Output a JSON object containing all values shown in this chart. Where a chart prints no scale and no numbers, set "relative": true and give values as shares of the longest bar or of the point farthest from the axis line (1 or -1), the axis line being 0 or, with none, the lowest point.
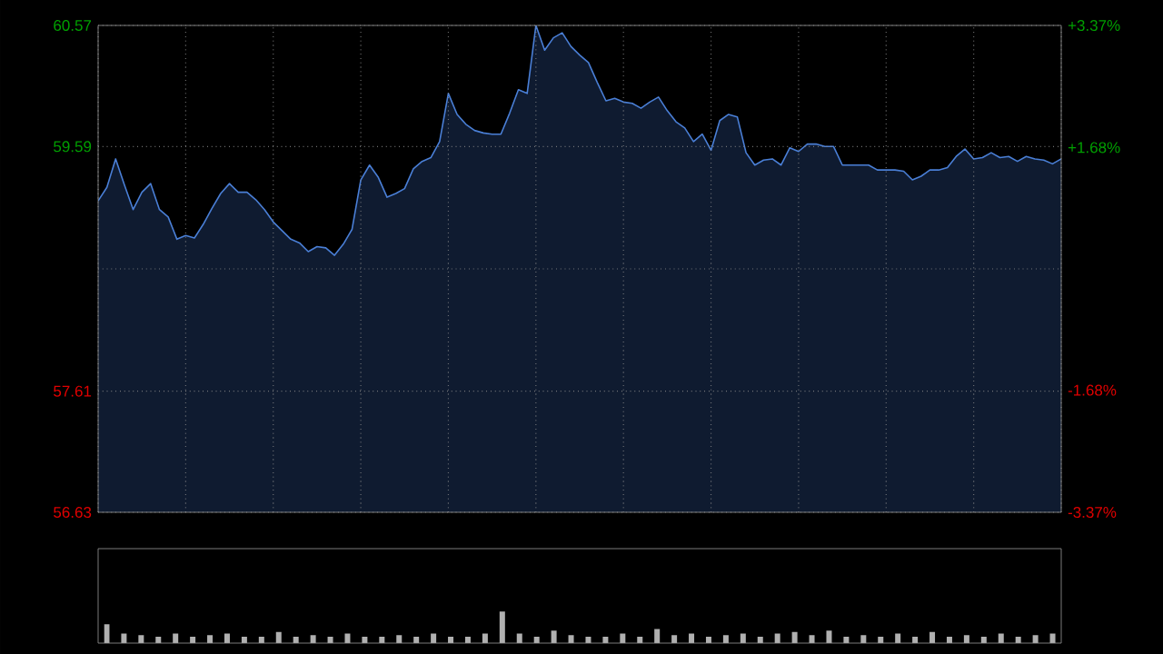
{
  "chart_data": [
    {
      "type": "area",
      "categories": [
        null,
        null,
        null,
        null,
        null,
        null,
        null,
        null,
        null,
        null,
        null,
        null,
        null,
        null,
        null,
        null,
        null,
        null,
        null,
        null,
        null,
        null,
        null,
        null,
        null,
        null,
        null,
        null,
        null,
        null,
        null,
        null,
        null,
        null,
        null,
        null,
        null,
        null,
        null,
        null,
        null,
        null,
        null,
        null,
        null,
        null,
        null,
        null,
        null,
        null,
        null,
        null,
        null,
        null,
        null,
        null,
        null,
        null,
        null,
        null,
        null,
        null,
        null,
        null,
        null,
        null,
        null,
        null,
        null,
        null,
        null,
        null,
        null,
        null,
        null,
        null,
        null,
        null,
        null,
        null,
        null,
        null,
        null,
        null,
        null,
        null,
        null,
        null,
        null,
        null,
        null,
        null,
        null,
        null,
        null,
        null,
        null,
        null,
        null,
        null,
        null,
        null,
        null,
        null,
        null,
        null,
        null,
        null,
        null,
        null,
        null
      ],
      "series": [
        {
          "color": "#4a7fd6",
          "values": [
            59.15,
            59.26,
            59.49,
            59.28,
            59.08,
            59.22,
            59.29,
            59.08,
            59.02,
            58.84,
            58.87,
            58.85,
            58.96,
            59.09,
            59.21,
            59.29,
            59.22,
            59.22,
            59.16,
            59.08,
            58.98,
            58.91,
            58.84,
            58.81,
            58.74,
            58.78,
            58.77,
            58.71,
            58.8,
            58.92,
            59.32,
            59.44,
            59.34,
            59.18,
            59.21,
            59.25,
            59.41,
            59.47,
            59.5,
            59.63,
            60.02,
            59.85,
            59.77,
            59.72,
            59.7,
            59.69,
            59.69,
            59.86,
            60.05,
            60.02,
            60.57,
            60.37,
            60.47,
            60.51,
            60.4,
            60.33,
            60.27,
            60.11,
            59.96,
            59.98,
            59.95,
            59.94,
            59.9,
            59.95,
            59.99,
            59.88,
            59.79,
            59.74,
            59.63,
            59.69,
            59.56,
            59.8,
            59.85,
            59.83,
            59.54,
            59.44,
            59.48,
            59.49,
            59.44,
            59.58,
            59.55,
            59.61,
            59.61,
            59.59,
            59.59,
            59.44,
            59.44,
            59.44,
            59.44,
            59.4,
            59.4,
            59.4,
            59.39,
            59.32,
            59.35,
            59.4,
            59.4,
            59.42,
            59.51,
            59.57,
            59.49,
            59.5,
            59.54,
            59.5,
            59.51,
            59.47,
            59.51,
            59.49,
            59.48,
            59.45,
            59.49
          ]
        }
      ],
      "ylim": [
        56.63,
        60.57
      ],
      "yticks": [
        56.63,
        57.61,
        {
          "value": 58.6,
          "label": null
        },
        59.59,
        60.57
      ],
      "y2lim": [
        -3.37,
        3.37
      ],
      "y2ticks": [
        {
          "value": -3.37,
          "label": "-3.37%"
        },
        {
          "value": -1.68,
          "label": "-1.68%"
        },
        {
          "value": 0,
          "label": null
        },
        {
          "value": 1.68,
          "label": "+1.68%"
        },
        {
          "value": 3.37,
          "label": "+3.37%"
        }
      ],
      "grid": true,
      "tick_labels": "y"
    },
    {
      "type": "bar",
      "relative": true,
      "categories": [
        null,
        null,
        null,
        null,
        null,
        null,
        null,
        null,
        null,
        null,
        null,
        null,
        null,
        null,
        null,
        null,
        null,
        null,
        null,
        null,
        null,
        null,
        null,
        null,
        null,
        null,
        null,
        null,
        null,
        null,
        null,
        null,
        null,
        null,
        null,
        null,
        null,
        null,
        null,
        null,
        null,
        null,
        null,
        null,
        null,
        null,
        null,
        null,
        null,
        null,
        null,
        null,
        null,
        null,
        null,
        null
      ],
      "color": "#b0b0b0",
      "values": [
        0.6,
        0.3,
        0.25,
        0.2,
        0.3,
        0.2,
        0.25,
        0.3,
        0.2,
        0.2,
        0.35,
        0.2,
        0.25,
        0.2,
        0.3,
        0.2,
        0.2,
        0.25,
        0.2,
        0.3,
        0.2,
        0.2,
        0.3,
        1.0,
        0.3,
        0.2,
        0.4,
        0.25,
        0.2,
        0.2,
        0.3,
        0.2,
        0.45,
        0.25,
        0.3,
        0.2,
        0.25,
        0.3,
        0.2,
        0.3,
        0.35,
        0.25,
        0.4,
        0.2,
        0.25,
        0.2,
        0.3,
        0.2,
        0.35,
        0.2,
        0.25,
        0.2,
        0.3,
        0.2,
        0.25,
        0.3
      ]
    }
  ]
}
